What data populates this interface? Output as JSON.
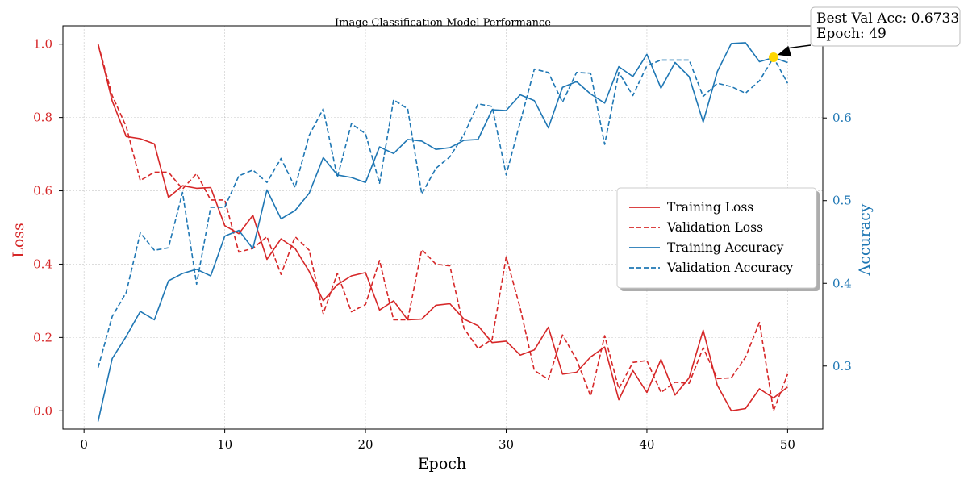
{
  "colors": {
    "loss": "#d62728",
    "accuracy": "#1f77b4",
    "best_marker": "#ffd700",
    "grid": "#b0b0b0"
  },
  "chart_data": {
    "type": "line",
    "title": "Image Classification Model Performance",
    "xlabel": "Epoch",
    "ylabel_left": "Loss",
    "ylabel_right": "Accuracy",
    "xlim": [
      -1.5,
      52.5
    ],
    "ylim_left": [
      -0.05,
      1.05
    ],
    "ylim_right": [
      0.2237,
      0.7114
    ],
    "x_ticks": [
      "0",
      "10",
      "20",
      "30",
      "40",
      "50"
    ],
    "y_left_ticks": [
      "0.0",
      "0.2",
      "0.4",
      "0.6",
      "0.8",
      "1.0"
    ],
    "y_right_ticks": [
      "0.3",
      "0.4",
      "0.5",
      "0.6",
      "0.7"
    ],
    "grid": true,
    "legend_position": "center-right",
    "x": [
      1,
      2,
      3,
      4,
      5,
      6,
      7,
      8,
      9,
      10,
      11,
      12,
      13,
      14,
      15,
      16,
      17,
      18,
      19,
      20,
      21,
      22,
      23,
      24,
      25,
      26,
      27,
      28,
      29,
      30,
      31,
      32,
      33,
      34,
      35,
      36,
      37,
      38,
      39,
      40,
      41,
      42,
      43,
      44,
      45,
      46,
      47,
      48,
      49,
      50
    ],
    "series": [
      {
        "name": "Training Loss",
        "axis": "left",
        "style": "solid",
        "color": "#d62728",
        "values": [
          1.0,
          0.845,
          0.748,
          0.742,
          0.728,
          0.582,
          0.614,
          0.607,
          0.609,
          0.505,
          0.483,
          0.533,
          0.413,
          0.469,
          0.443,
          0.38,
          0.3,
          0.344,
          0.368,
          0.377,
          0.275,
          0.3,
          0.248,
          0.25,
          0.288,
          0.292,
          0.25,
          0.232,
          0.186,
          0.19,
          0.152,
          0.166,
          0.228,
          0.1,
          0.105,
          0.147,
          0.174,
          0.03,
          0.11,
          0.05,
          0.14,
          0.043,
          0.09,
          0.22,
          0.07,
          0.0,
          0.006,
          0.06,
          0.035,
          0.065
        ]
      },
      {
        "name": "Validation Loss",
        "axis": "left",
        "style": "dashed",
        "color": "#d62728",
        "values": [
          1.0,
          0.86,
          0.775,
          0.628,
          0.651,
          0.651,
          0.605,
          0.647,
          0.575,
          0.575,
          0.433,
          0.443,
          0.475,
          0.372,
          0.475,
          0.438,
          0.265,
          0.375,
          0.27,
          0.29,
          0.41,
          0.248,
          0.248,
          0.44,
          0.4,
          0.395,
          0.225,
          0.17,
          0.195,
          0.42,
          0.28,
          0.11,
          0.086,
          0.207,
          0.14,
          0.04,
          0.205,
          0.06,
          0.132,
          0.137,
          0.05,
          0.078,
          0.075,
          0.172,
          0.088,
          0.09,
          0.146,
          0.241,
          0.0,
          0.1
        ]
      },
      {
        "name": "Training Accuracy",
        "axis": "right",
        "style": "solid",
        "color": "#1f77b4",
        "values": [
          0.233,
          0.309,
          0.336,
          0.366,
          0.356,
          0.403,
          0.412,
          0.417,
          0.409,
          0.457,
          0.464,
          0.442,
          0.513,
          0.478,
          0.488,
          0.509,
          0.552,
          0.531,
          0.528,
          0.522,
          0.565,
          0.557,
          0.574,
          0.572,
          0.562,
          0.564,
          0.573,
          0.574,
          0.61,
          0.609,
          0.628,
          0.621,
          0.588,
          0.637,
          0.644,
          0.629,
          0.618,
          0.662,
          0.65,
          0.677,
          0.636,
          0.667,
          0.65,
          0.595,
          0.656,
          0.69,
          0.691,
          0.668,
          0.673,
          0.667
        ]
      },
      {
        "name": "Validation Accuracy",
        "axis": "right",
        "style": "dashed",
        "color": "#1f77b4",
        "values": [
          0.298,
          0.36,
          0.389,
          0.461,
          0.44,
          0.443,
          0.51,
          0.399,
          0.492,
          0.492,
          0.53,
          0.537,
          0.522,
          0.551,
          0.516,
          0.579,
          0.611,
          0.528,
          0.593,
          0.581,
          0.521,
          0.622,
          0.611,
          0.508,
          0.539,
          0.553,
          0.58,
          0.617,
          0.614,
          0.531,
          0.595,
          0.659,
          0.655,
          0.619,
          0.655,
          0.654,
          0.568,
          0.655,
          0.627,
          0.663,
          0.67,
          0.67,
          0.67,
          0.626,
          0.642,
          0.638,
          0.63,
          0.645,
          0.673,
          0.642
        ]
      }
    ],
    "annotation": {
      "line1": "Best Val Acc: 0.6733",
      "line2": "Epoch: 49",
      "x": 49,
      "y": 0.6733,
      "axis": "right"
    }
  }
}
